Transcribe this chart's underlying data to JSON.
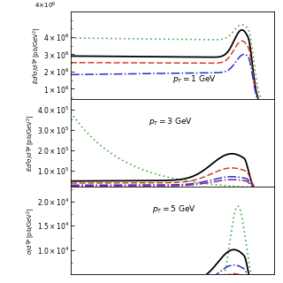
{
  "panels": [
    {
      "label": "p_{T} = 1 GeV",
      "ylim": [
        400000.0,
        5500000.0
      ],
      "yticks": [
        1000000.0,
        2000000.0,
        3000000.0,
        4000000.0
      ],
      "top_label": "4×10^6"
    },
    {
      "label": "p_{T} = 3 GeV",
      "ylim": [
        20000.0,
        450000.0
      ],
      "yticks": [
        100000.0,
        200000.0,
        300000.0,
        400000.0
      ]
    },
    {
      "label": "p_{T} = 5 GeV",
      "ylim": [
        5000.0,
        23000.0
      ],
      "yticks": [
        10000.0,
        15000.0,
        20000.0
      ]
    }
  ],
  "colors": {
    "dotted_green": "#44aa44",
    "solid_black": "#000000",
    "dashed_red": "#cc3311",
    "dashdot_blue": "#2233cc",
    "dashdot_purple": "#882288"
  },
  "lw": 1.0,
  "bg": "#ffffff"
}
